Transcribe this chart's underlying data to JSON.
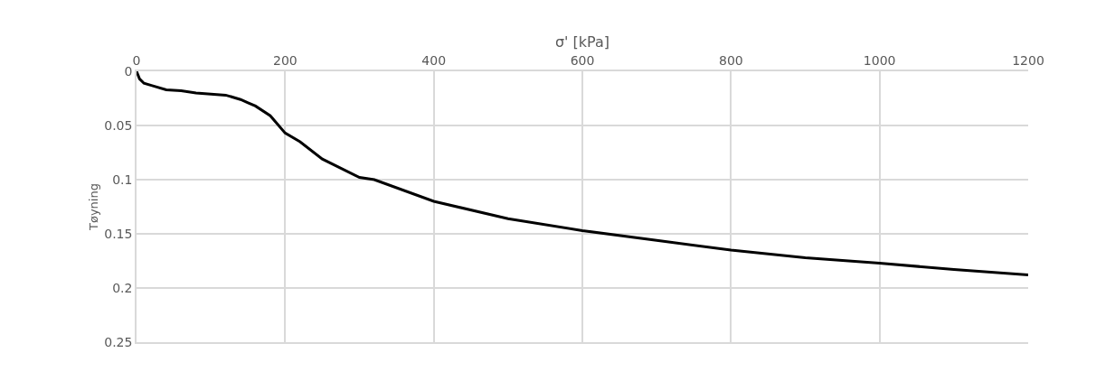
{
  "chart_data": {
    "type": "line",
    "xlabel": "σ' [kPa]",
    "ylabel": "Tøyning",
    "x": [
      0,
      4,
      10,
      20,
      40,
      60,
      80,
      100,
      120,
      140,
      150,
      160,
      180,
      200,
      220,
      250,
      300,
      320,
      400,
      500,
      600,
      700,
      800,
      900,
      1000,
      1100,
      1200
    ],
    "series": [
      {
        "color": "#000000",
        "values": [
          0,
          0.007,
          0.011,
          0.013,
          0.017,
          0.018,
          0.02,
          0.021,
          0.022,
          0.026,
          0.029,
          0.032,
          0.041,
          0.057,
          0.065,
          0.081,
          0.098,
          0.1,
          0.12,
          0.136,
          0.147,
          0.156,
          0.165,
          0.172,
          0.177,
          0.183,
          0.188
        ]
      }
    ],
    "xlim": [
      0,
      1200
    ],
    "xticks": [
      0,
      200,
      400,
      600,
      800,
      1000,
      1200
    ],
    "ylim": [
      0.25,
      0
    ],
    "yticks": [
      0,
      0.05,
      0.1,
      0.15,
      0.2,
      0.25
    ],
    "grid": true,
    "marker": "none",
    "line_style": "solid"
  }
}
